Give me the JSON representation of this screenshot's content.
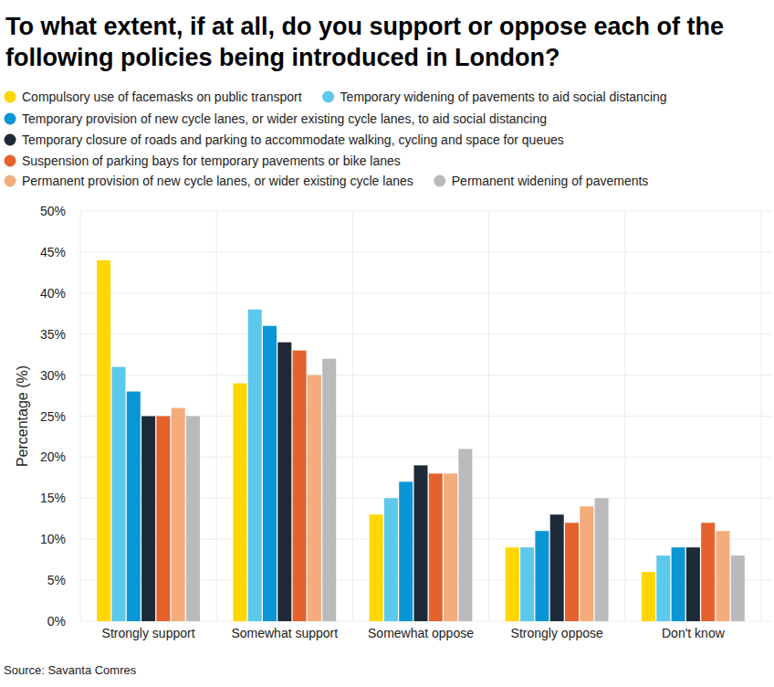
{
  "chart_data": {
    "type": "bar",
    "title": "To what extent, if at all, do you support or oppose each of the following policies being introduced in London?",
    "y_label": "Percentage (%)",
    "source": "Source: Savanta Comres",
    "categories": [
      "Strongly support",
      "Somewhat support",
      "Somewhat oppose",
      "Strongly oppose",
      "Don't know"
    ],
    "series": [
      {
        "name": "Compulsory use of facemasks on public transport",
        "color": "#ffd600",
        "values": [
          44,
          29,
          13,
          9,
          6
        ]
      },
      {
        "name": "Temporary widening of pavements to aid social distancing",
        "color": "#5cc8ea",
        "values": [
          31,
          38,
          15,
          9,
          8
        ]
      },
      {
        "name": "Temporary provision of new cycle lanes, or wider existing cycle lanes, to aid social distancing",
        "color": "#0a96d4",
        "values": [
          28,
          36,
          17,
          11,
          9
        ]
      },
      {
        "name": "Temporary closure of roads and parking to accommodate walking, cycling and space for queues",
        "color": "#1e2a38",
        "values": [
          25,
          34,
          19,
          13,
          9
        ]
      },
      {
        "name": "Suspension of parking bays for temporary pavements or bike lanes",
        "color": "#e5622c",
        "values": [
          25,
          33,
          18,
          12,
          12
        ]
      },
      {
        "name": "Permanent provision of new cycle lanes, or wider existing cycle lanes",
        "color": "#f4ac7c",
        "values": [
          26,
          30,
          18,
          14,
          11
        ]
      },
      {
        "name": "Permanent widening of pavements",
        "color": "#bababa",
        "values": [
          25,
          32,
          21,
          15,
          8
        ]
      }
    ],
    "ylim": [
      0,
      50
    ],
    "yticks": [
      {
        "value": 0,
        "label": "0%"
      },
      {
        "value": 5,
        "label": "5%"
      },
      {
        "value": 10,
        "label": "10%"
      },
      {
        "value": 15,
        "label": "15%"
      },
      {
        "value": 20,
        "label": "20%"
      },
      {
        "value": 25,
        "label": "25%"
      },
      {
        "value": 30,
        "label": "30%"
      },
      {
        "value": 35,
        "label": "35%"
      },
      {
        "value": 40,
        "label": "40%"
      },
      {
        "value": 45,
        "label": "45%"
      },
      {
        "value": 50,
        "label": "50%"
      }
    ],
    "grid": true,
    "legend": "top"
  }
}
